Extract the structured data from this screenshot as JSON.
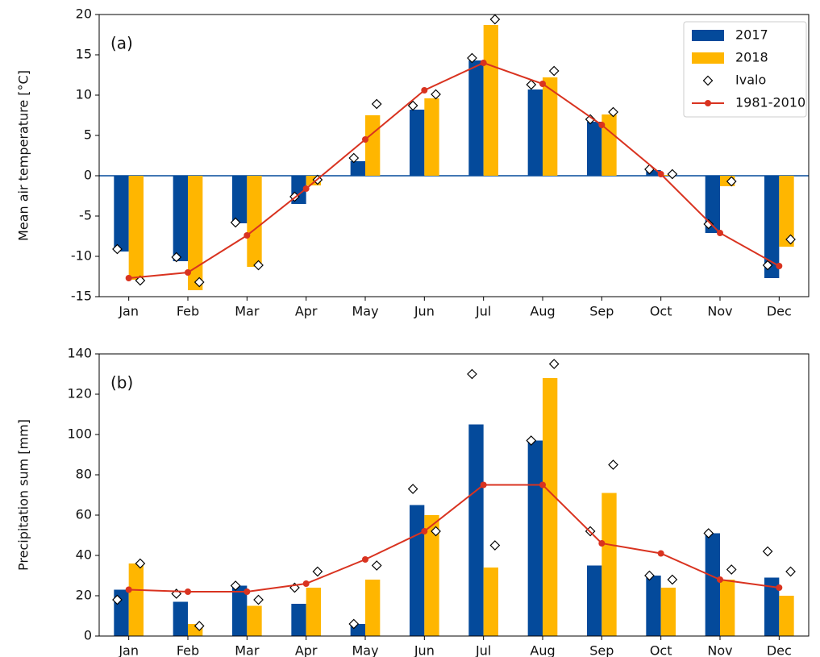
{
  "chart_data": [
    {
      "type": "bar",
      "annotation": "(a)",
      "ylabel": "Mean air temperature [°C]",
      "categories": [
        "Jan",
        "Feb",
        "Mar",
        "Apr",
        "May",
        "Jun",
        "Jul",
        "Aug",
        "Sep",
        "Oct",
        "Nov",
        "Dec"
      ],
      "ylim": [
        -15,
        20
      ],
      "yticks": [
        -15,
        -10,
        -5,
        0,
        5,
        10,
        15,
        20
      ],
      "zero_line": true,
      "legend": "upper right",
      "series": [
        {
          "name": "2017",
          "type": "bar",
          "color": "#044a9b",
          "values": [
            -9.4,
            -10.6,
            -5.9,
            -3.5,
            1.8,
            8.2,
            14.3,
            10.7,
            6.7,
            0.7,
            -7.1,
            -12.7
          ]
        },
        {
          "name": "2018",
          "type": "bar",
          "color": "#ffb600",
          "values": [
            -12.9,
            -14.2,
            -11.3,
            -1.2,
            7.5,
            9.6,
            18.7,
            12.2,
            7.6,
            0.1,
            -1.3,
            -8.8
          ]
        },
        {
          "name": "Ivalo",
          "type": "scatter",
          "color": "#ffffff",
          "values": [
            [
              -9.1,
              -13.0
            ],
            [
              -10.1,
              -13.2
            ],
            [
              -5.8,
              -11.1
            ],
            [
              -2.6,
              -0.5
            ],
            [
              2.2,
              8.9
            ],
            [
              8.7,
              10.1
            ],
            [
              14.6,
              19.4
            ],
            [
              11.3,
              13.0
            ],
            [
              7.0,
              7.9
            ],
            [
              0.8,
              0.2
            ],
            [
              -6.0,
              -0.7
            ],
            [
              -11.1,
              -7.9
            ]
          ]
        },
        {
          "name": "1981-2010",
          "type": "line",
          "color": "#d93320",
          "values": [
            -12.7,
            -12.0,
            -7.4,
            -1.6,
            4.5,
            10.6,
            14.0,
            11.4,
            6.3,
            0.2,
            -7.1,
            -11.2
          ]
        }
      ]
    },
    {
      "type": "bar",
      "annotation": "(b)",
      "ylabel": "Precipitation sum [mm]",
      "categories": [
        "Jan",
        "Feb",
        "Mar",
        "Apr",
        "May",
        "Jun",
        "Jul",
        "Aug",
        "Sep",
        "Oct",
        "Nov",
        "Dec"
      ],
      "ylim": [
        0,
        140
      ],
      "yticks": [
        0,
        20,
        40,
        60,
        80,
        100,
        120,
        140
      ],
      "series": [
        {
          "name": "2017",
          "type": "bar",
          "color": "#044a9b",
          "values": [
            23,
            17,
            25,
            16,
            6,
            65,
            105,
            97,
            35,
            30,
            51,
            29
          ]
        },
        {
          "name": "2018",
          "type": "bar",
          "color": "#ffb600",
          "values": [
            36,
            6,
            15,
            24,
            28,
            60,
            34,
            128,
            71,
            24,
            28,
            20
          ]
        },
        {
          "name": "Ivalo",
          "type": "scatter",
          "color": "#ffffff",
          "values": [
            [
              18,
              36
            ],
            [
              21,
              5
            ],
            [
              25,
              18
            ],
            [
              24,
              32
            ],
            [
              6,
              35
            ],
            [
              73,
              52
            ],
            [
              130,
              45
            ],
            [
              97,
              135
            ],
            [
              52,
              85
            ],
            [
              30,
              28
            ],
            [
              51,
              33
            ],
            [
              42,
              32
            ]
          ]
        },
        {
          "name": "1981-2010",
          "type": "line",
          "color": "#d93320",
          "values": [
            23,
            22,
            22,
            26,
            38,
            52,
            75,
            75,
            46,
            41,
            28,
            24
          ]
        }
      ]
    }
  ]
}
